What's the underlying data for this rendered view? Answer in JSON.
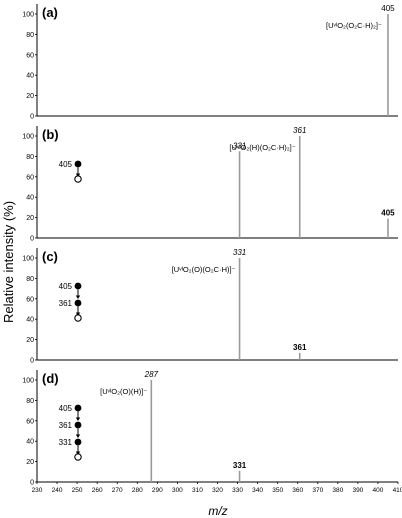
{
  "figure": {
    "ylabel": "Relative intensity (%)",
    "xlabel": "m/z",
    "xticks": [
      230,
      240,
      250,
      260,
      270,
      280,
      290,
      300,
      310,
      320,
      330,
      340,
      350,
      360,
      370,
      380,
      390,
      400,
      410
    ],
    "yticks": [
      0,
      20,
      40,
      60,
      80,
      100
    ]
  },
  "chart_data": [
    {
      "type": "bar",
      "panel": "(a)",
      "xlim": [
        230,
        410
      ],
      "ylim": [
        0,
        100
      ],
      "peaks": [
        {
          "mz": 405,
          "intensity": 100,
          "label": "405",
          "label_style": "plain"
        }
      ],
      "ion_formula": "[UᵛᴵO₂(O₂C·H)₂]⁻",
      "ms_stages": []
    },
    {
      "type": "bar",
      "panel": "(b)",
      "xlim": [
        230,
        410
      ],
      "ylim": [
        0,
        100
      ],
      "peaks": [
        {
          "mz": 331,
          "intensity": 85,
          "label": "331",
          "label_style": "italic"
        },
        {
          "mz": 361,
          "intensity": 100,
          "label": "361",
          "label_style": "italic"
        },
        {
          "mz": 405,
          "intensity": 19,
          "label": "405",
          "label_style": "bold"
        }
      ],
      "ion_formula": "[UᵛᴵO₂(H)(O₂C·H)₂]⁻",
      "ms_stages": [
        "405"
      ]
    },
    {
      "type": "bar",
      "panel": "(c)",
      "xlim": [
        230,
        410
      ],
      "ylim": [
        0,
        100
      ],
      "peaks": [
        {
          "mz": 331,
          "intensity": 100,
          "label": "331",
          "label_style": "italic"
        },
        {
          "mz": 361,
          "intensity": 7,
          "label": "361",
          "label_style": "bold"
        }
      ],
      "ion_formula": "[UᵛᴵO₂(O)(O₂C·H)]⁻",
      "ms_stages": [
        "405",
        "361"
      ]
    },
    {
      "type": "bar",
      "panel": "(d)",
      "xlim": [
        230,
        410
      ],
      "ylim": [
        0,
        100
      ],
      "peaks": [
        {
          "mz": 287,
          "intensity": 100,
          "label": "287",
          "label_style": "italic"
        },
        {
          "mz": 331,
          "intensity": 11,
          "label": "331",
          "label_style": "bold"
        }
      ],
      "ion_formula": "[UᵛᴵO₂(O)(H)]⁻",
      "ms_stages": [
        "405",
        "361",
        "331"
      ]
    }
  ],
  "colors": {
    "axis": "#000000",
    "peak": "#9a9a9a",
    "text": "#000000"
  }
}
